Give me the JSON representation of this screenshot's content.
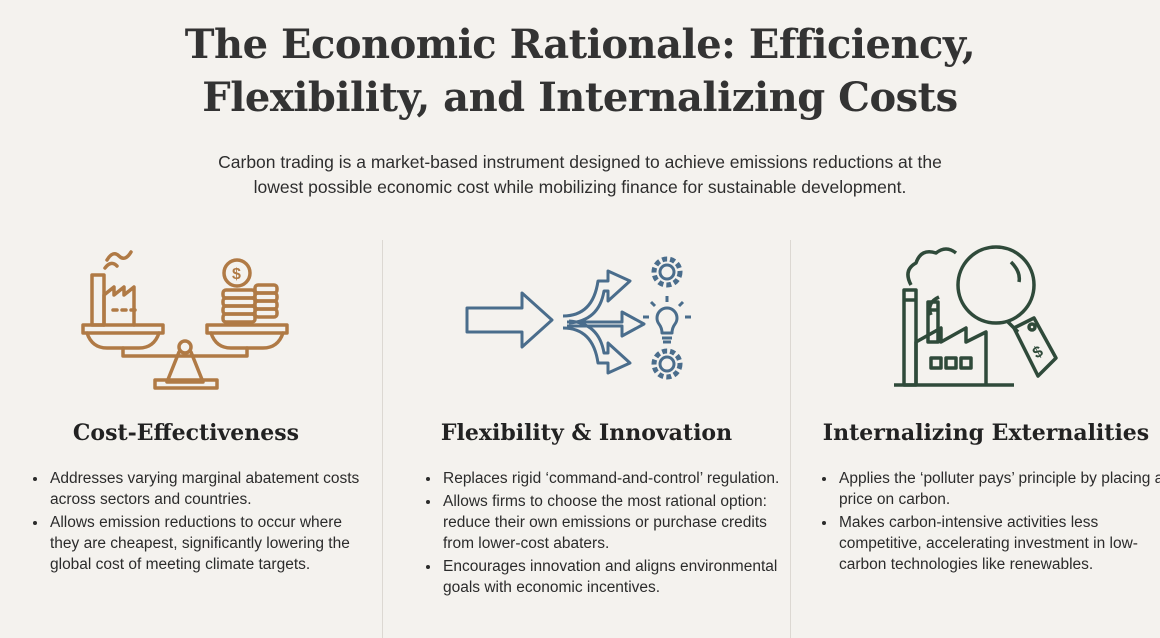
{
  "title_lines": [
    "The Economic Rationale: Efficiency,",
    "Flexibility, and Internalizing Costs"
  ],
  "subtitle_lines": [
    "Carbon trading is a market-based instrument designed to achieve emissions reductions at the",
    "lowest possible economic cost while mobilizing finance for sustainable development."
  ],
  "colors": {
    "background": "#f4f2ee",
    "cost_icon": "#b07a45",
    "flex_icon": "#4a6d8c",
    "extern_icon": "#2f4a3a"
  },
  "columns": [
    {
      "icon": "balance-scale-factory-coins-icon",
      "heading": "Cost-Effectiveness",
      "bullets": [
        "Addresses varying marginal abatement costs across sectors and countries.",
        "Allows emission reductions to occur where they are cheapest, significantly lowering the global cost of meeting climate targets."
      ]
    },
    {
      "icon": "branching-arrows-gear-lightbulb-icon",
      "heading": "Flexibility & Innovation",
      "bullets": [
        "Replaces rigid ‘command-and-control’ regulation.",
        "Allows firms to choose the most rational option: reduce their own emissions or purchase credits from lower-cost abaters.",
        "Encourages innovation and aligns environmental goals with economic incentives."
      ]
    },
    {
      "icon": "factory-magnifier-price-tag-icon",
      "heading": "Internalizing Externalities",
      "bullets": [
        "Applies the ‘polluter pays’ principle by placing a price on carbon.",
        "Makes carbon-intensive activities less competitive, accelerating investment in low-carbon technologies like renewables."
      ]
    }
  ]
}
